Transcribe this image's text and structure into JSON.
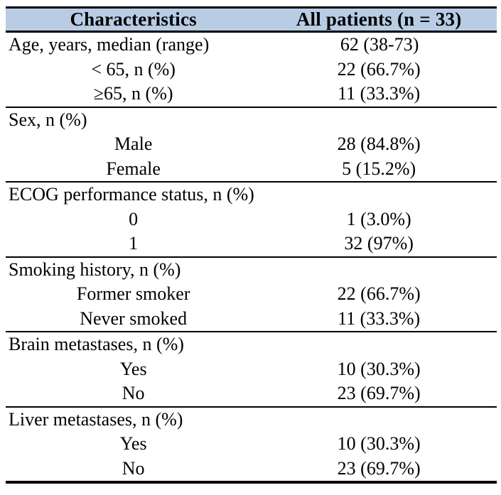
{
  "colors": {
    "header_background": "#b8cce4",
    "border": "#000000",
    "text": "#000000",
    "page_background": "#ffffff"
  },
  "table": {
    "header": {
      "characteristics": "Characteristics",
      "all_patients": "All patients (n = 33)"
    },
    "sections": [
      {
        "rows": [
          {
            "label": "Age, years, median (range)",
            "value": "62 (38-73)",
            "align": "left"
          },
          {
            "label": "< 65, n (%)",
            "value": "22 (66.7%)",
            "align": "center"
          },
          {
            "label": "≥65, n (%)",
            "value": "11 (33.3%)",
            "align": "center"
          }
        ]
      },
      {
        "rows": [
          {
            "label": "Sex, n (%)",
            "value": "",
            "align": "left"
          },
          {
            "label": "Male",
            "value": "28 (84.8%)",
            "align": "center"
          },
          {
            "label": "Female",
            "value": "5 (15.2%)",
            "align": "center"
          }
        ]
      },
      {
        "rows": [
          {
            "label": "ECOG performance status, n (%)",
            "value": "",
            "align": "left"
          },
          {
            "label": "0",
            "value": "1 (3.0%)",
            "align": "center"
          },
          {
            "label": "1",
            "value": "32 (97%)",
            "align": "center"
          }
        ]
      },
      {
        "rows": [
          {
            "label": "Smoking history, n (%)",
            "value": "",
            "align": "left"
          },
          {
            "label": "Former smoker",
            "value": "22 (66.7%)",
            "align": "center"
          },
          {
            "label": "Never smoked",
            "value": "11 (33.3%)",
            "align": "center"
          }
        ]
      },
      {
        "rows": [
          {
            "label": "Brain metastases, n (%)",
            "value": "",
            "align": "left"
          },
          {
            "label": "Yes",
            "value": "10 (30.3%)",
            "align": "center"
          },
          {
            "label": "No",
            "value": "23 (69.7%)",
            "align": "center"
          }
        ]
      },
      {
        "rows": [
          {
            "label": "Liver metastases, n (%)",
            "value": "",
            "align": "left"
          },
          {
            "label": "Yes",
            "value": "10 (30.3%)",
            "align": "center"
          },
          {
            "label": "No",
            "value": "23 (69.7%)",
            "align": "center"
          }
        ]
      }
    ]
  }
}
